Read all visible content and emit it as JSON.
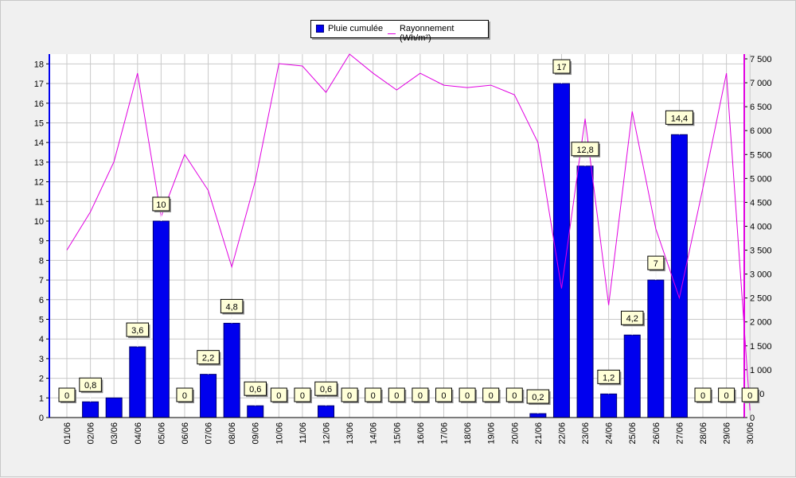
{
  "chart_data": {
    "type": "bar",
    "categories": [
      "01/06",
      "02/06",
      "03/06",
      "04/06",
      "05/06",
      "06/06",
      "07/06",
      "08/06",
      "09/06",
      "10/06",
      "11/06",
      "12/06",
      "13/06",
      "14/06",
      "15/06",
      "16/06",
      "17/06",
      "18/06",
      "19/06",
      "20/06",
      "21/06",
      "22/06",
      "23/06",
      "24/06",
      "25/06",
      "26/06",
      "27/06",
      "28/06",
      "29/06",
      "30/06"
    ],
    "series": [
      {
        "name": "Pluie cumulée",
        "type": "bar",
        "axis": "left",
        "color": "#0000ee",
        "values": [
          0,
          0.8,
          1,
          3.6,
          10,
          0,
          2.2,
          4.8,
          0.6,
          0,
          0,
          0.6,
          0,
          0,
          0,
          0,
          0,
          0,
          0,
          0,
          0.2,
          17,
          12.8,
          1.2,
          4.2,
          7,
          14.4,
          0,
          0,
          0
        ],
        "labels": [
          "0",
          "0,8",
          "",
          "3,6",
          "10",
          "0",
          "2,2",
          "4,8",
          "0,6",
          "0",
          "0",
          "0,6",
          "0",
          "0",
          "0",
          "0",
          "0",
          "0",
          "0",
          "0",
          "0,2",
          "17",
          "12,8",
          "1,2",
          "4,2",
          "7",
          "14,4",
          "0",
          "0",
          "0"
        ]
      },
      {
        "name": "Rayonnement (Wh/m²)",
        "type": "line",
        "axis": "right",
        "color": "#e100e1",
        "values": [
          3500,
          4300,
          5350,
          7200,
          4200,
          5500,
          4750,
          3150,
          4950,
          7400,
          7350,
          6800,
          7600,
          7200,
          6850,
          7200,
          6950,
          6900,
          6950,
          6750,
          5750,
          2700,
          6250,
          2350,
          6400,
          3950,
          2500,
          4800,
          7200,
          150
        ]
      }
    ],
    "y_left": {
      "min": 0,
      "max": 18.5,
      "ticks": [
        "0",
        "1",
        "2",
        "3",
        "4",
        "5",
        "6",
        "7",
        "8",
        "9",
        "10",
        "11",
        "12",
        "13",
        "14",
        "15",
        "16",
        "17",
        "18"
      ]
    },
    "y_right": {
      "min": 0,
      "max": 7600,
      "ticks": [
        "0",
        "500",
        "1 000",
        "1 500",
        "2 000",
        "2 500",
        "3 000",
        "3 500",
        "4 000",
        "4 500",
        "5 000",
        "5 500",
        "6 000",
        "6 500",
        "7 000",
        "7 500"
      ]
    },
    "grid": true,
    "legend": "top-center"
  }
}
